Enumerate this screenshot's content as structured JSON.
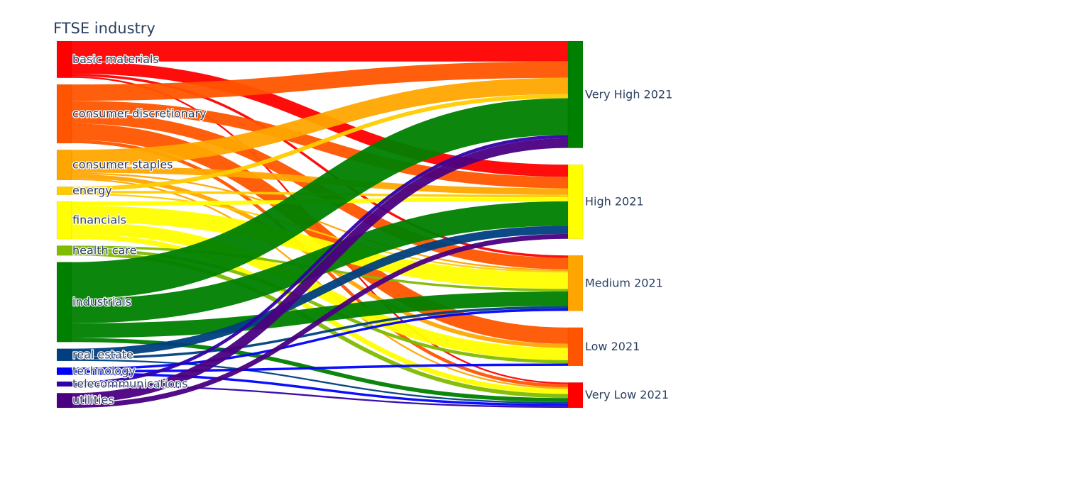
{
  "chart_data": {
    "type": "sankey",
    "title": "FTSE industry",
    "sources": [
      {
        "label": "basic materials",
        "color": "#ff0000"
      },
      {
        "label": "consumer discretionary",
        "color": "#ff5500"
      },
      {
        "label": "consumer staples",
        "color": "#ffa500"
      },
      {
        "label": "energy",
        "color": "#ffcc00"
      },
      {
        "label": "financials",
        "color": "#ffff00"
      },
      {
        "label": "health care",
        "color": "#80bb00"
      },
      {
        "label": "industrials",
        "color": "#008000"
      },
      {
        "label": "real estate",
        "color": "#003f7f"
      },
      {
        "label": "technology",
        "color": "#0000ff"
      },
      {
        "label": "telecommunications",
        "color": "#3300aa"
      },
      {
        "label": "utilities",
        "color": "#4b0082"
      }
    ],
    "targets": [
      {
        "label": "Very High 2021",
        "color": "#008000"
      },
      {
        "label": "High 2021",
        "color": "#ffff00"
      },
      {
        "label": "Medium 2021",
        "color": "#ffa500"
      },
      {
        "label": "Low 2021",
        "color": "#ff5500"
      },
      {
        "label": "Very Low 2021",
        "color": "#ff0000"
      }
    ],
    "links": [
      {
        "source": 0,
        "target": 0,
        "value": 25
      },
      {
        "source": 0,
        "target": 1,
        "value": 15
      },
      {
        "source": 0,
        "target": 2,
        "value": 3
      },
      {
        "source": 0,
        "target": 4,
        "value": 2
      },
      {
        "source": 1,
        "target": 0,
        "value": 20
      },
      {
        "source": 1,
        "target": 1,
        "value": 14
      },
      {
        "source": 1,
        "target": 2,
        "value": 14
      },
      {
        "source": 1,
        "target": 3,
        "value": 20
      },
      {
        "source": 1,
        "target": 4,
        "value": 4
      },
      {
        "source": 2,
        "target": 0,
        "value": 20
      },
      {
        "source": 2,
        "target": 1,
        "value": 8
      },
      {
        "source": 2,
        "target": 2,
        "value": 2
      },
      {
        "source": 2,
        "target": 3,
        "value": 5
      },
      {
        "source": 2,
        "target": 4,
        "value": 2
      },
      {
        "source": 3,
        "target": 0,
        "value": 5
      },
      {
        "source": 3,
        "target": 1,
        "value": 3
      },
      {
        "source": 3,
        "target": 2,
        "value": 2
      },
      {
        "source": 4,
        "target": 1,
        "value": 5
      },
      {
        "source": 4,
        "target": 2,
        "value": 20
      },
      {
        "source": 4,
        "target": 3,
        "value": 15
      },
      {
        "source": 4,
        "target": 4,
        "value": 6
      },
      {
        "source": 5,
        "target": 2,
        "value": 3
      },
      {
        "source": 5,
        "target": 3,
        "value": 4
      },
      {
        "source": 5,
        "target": 4,
        "value": 5
      },
      {
        "source": 6,
        "target": 0,
        "value": 45
      },
      {
        "source": 6,
        "target": 1,
        "value": 30
      },
      {
        "source": 6,
        "target": 2,
        "value": 18
      },
      {
        "source": 6,
        "target": 4,
        "value": 5
      },
      {
        "source": 7,
        "target": 1,
        "value": 10
      },
      {
        "source": 7,
        "target": 2,
        "value": 3
      },
      {
        "source": 7,
        "target": 4,
        "value": 2
      },
      {
        "source": 8,
        "target": 2,
        "value": 3
      },
      {
        "source": 8,
        "target": 3,
        "value": 3
      },
      {
        "source": 8,
        "target": 4,
        "value": 3
      },
      {
        "source": 9,
        "target": 0,
        "value": 4
      },
      {
        "source": 9,
        "target": 4,
        "value": 2
      },
      {
        "source": 10,
        "target": 0,
        "value": 12
      },
      {
        "source": 10,
        "target": 1,
        "value": 6
      }
    ]
  }
}
